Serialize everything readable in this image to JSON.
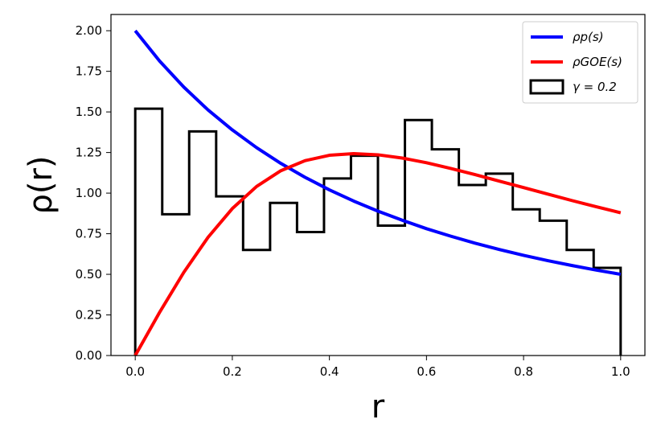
{
  "chart_data": {
    "type": "line",
    "xlabel": "r",
    "ylabel": "ρ(r)",
    "xlim": [
      -0.05,
      1.05
    ],
    "ylim": [
      0.0,
      2.1
    ],
    "xticks": [
      "0.0",
      "0.2",
      "0.4",
      "0.6",
      "0.8",
      "1.0"
    ],
    "xtick_values": [
      0.0,
      0.2,
      0.4,
      0.6,
      0.8,
      1.0
    ],
    "yticks": [
      "0.00",
      "0.25",
      "0.50",
      "0.75",
      "1.00",
      "1.25",
      "1.50",
      "1.75",
      "2.00"
    ],
    "ytick_values": [
      0.0,
      0.25,
      0.5,
      0.75,
      1.0,
      1.25,
      1.5,
      1.75,
      2.0
    ],
    "grid": false,
    "legend_placement": "top-right",
    "series": [
      {
        "name": "ρp(s)",
        "kind": "line",
        "color": "#0000ff",
        "x": [
          0.0,
          0.05,
          0.1,
          0.15,
          0.2,
          0.25,
          0.3,
          0.35,
          0.4,
          0.45,
          0.5,
          0.55,
          0.6,
          0.65,
          0.7,
          0.75,
          0.8,
          0.85,
          0.9,
          0.95,
          1.0
        ],
        "y": [
          2.0,
          1.814,
          1.653,
          1.512,
          1.389,
          1.28,
          1.183,
          1.097,
          1.02,
          0.951,
          0.889,
          0.833,
          0.781,
          0.735,
          0.692,
          0.653,
          0.617,
          0.584,
          0.554,
          0.526,
          0.5
        ]
      },
      {
        "name": "ρGOE(s)",
        "kind": "line",
        "color": "#ff0000",
        "x": [
          0.0,
          0.05,
          0.1,
          0.15,
          0.2,
          0.25,
          0.3,
          0.35,
          0.4,
          0.45,
          0.5,
          0.55,
          0.6,
          0.65,
          0.7,
          0.75,
          0.8,
          0.85,
          0.9,
          0.95,
          1.0
        ],
        "y": [
          0.0,
          0.265,
          0.512,
          0.728,
          0.905,
          1.041,
          1.138,
          1.2,
          1.233,
          1.243,
          1.236,
          1.216,
          1.187,
          1.152,
          1.114,
          1.074,
          1.034,
          0.994,
          0.954,
          0.916,
          0.879
        ]
      },
      {
        "name": "γ = 0.2",
        "kind": "histogram",
        "color": "#000000",
        "bin_edges": [
          0.0,
          0.0556,
          0.1111,
          0.1667,
          0.2222,
          0.2778,
          0.3333,
          0.3889,
          0.4444,
          0.5,
          0.5556,
          0.6111,
          0.6667,
          0.7222,
          0.7778,
          0.8333,
          0.8889,
          0.9444,
          1.0
        ],
        "values": [
          1.52,
          0.87,
          1.38,
          0.98,
          0.65,
          0.94,
          0.76,
          1.09,
          1.23,
          0.8,
          1.45,
          1.27,
          1.05,
          1.12,
          0.9,
          0.83,
          0.65,
          0.54
        ]
      }
    ]
  }
}
